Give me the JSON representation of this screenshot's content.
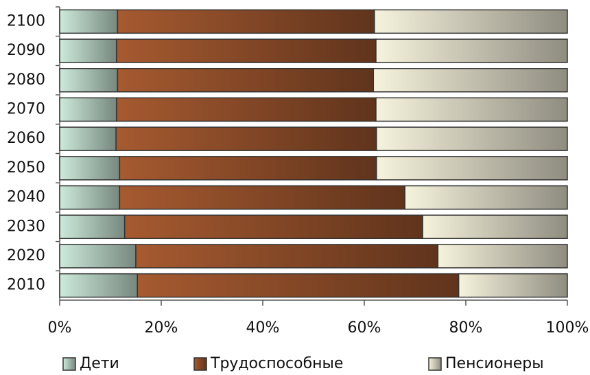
{
  "chart_data": {
    "type": "stacked-bar-horizontal",
    "categories": [
      "2100",
      "2090",
      "2080",
      "2070",
      "2060",
      "2050",
      "2040",
      "2030",
      "2020",
      "2010"
    ],
    "series": [
      {
        "name": "Дети",
        "color": "#cdeadb",
        "values": [
          11.4,
          11.2,
          11.4,
          11.2,
          11.1,
          11.8,
          11.8,
          12.8,
          15.0,
          15.3
        ]
      },
      {
        "name": "Трудоспособные",
        "color": "#a65a30",
        "values": [
          50.6,
          51.1,
          50.4,
          51.1,
          51.3,
          50.6,
          56.2,
          58.7,
          59.5,
          63.3
        ]
      },
      {
        "name": "Пенсионеры",
        "color": "#f6f3dd",
        "values": [
          38.0,
          37.7,
          38.2,
          37.7,
          37.6,
          37.6,
          32.0,
          28.5,
          25.5,
          21.4
        ]
      }
    ],
    "xlim": [
      0,
      100
    ],
    "xticks": [
      {
        "value": 0,
        "label": "0%"
      },
      {
        "value": 20,
        "label": "20%"
      },
      {
        "value": 40,
        "label": "40%"
      },
      {
        "value": 60,
        "label": "60%"
      },
      {
        "value": 80,
        "label": "80%"
      },
      {
        "value": 100,
        "label": "100%"
      }
    ],
    "legend": "bottom"
  }
}
